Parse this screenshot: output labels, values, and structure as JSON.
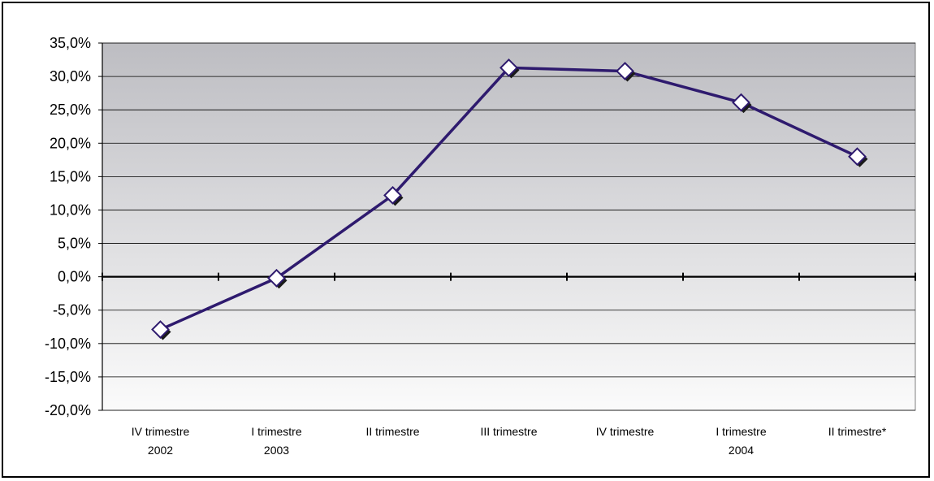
{
  "chart_data": {
    "type": "line",
    "title": "",
    "xlabel": "",
    "ylabel": "",
    "categories": [
      [
        "IV trimestre",
        "2002"
      ],
      [
        "I trimestre",
        "2003"
      ],
      [
        "II trimestre"
      ],
      [
        "III trimestre"
      ],
      [
        "IV trimestre"
      ],
      [
        "I trimestre",
        "2004"
      ],
      [
        "II trimestre*"
      ]
    ],
    "series": [
      {
        "values": [
          -7.9,
          -0.2,
          12.2,
          31.3,
          30.8,
          26.1,
          18.0
        ]
      }
    ],
    "ylim": [
      -20,
      35
    ],
    "yticks": [
      -20,
      -15,
      -10,
      -5,
      0,
      5,
      10,
      15,
      20,
      25,
      30,
      35
    ],
    "ytick_labels": [
      "-20,0%",
      "-15,0%",
      "-10,0%",
      "-5,0%",
      "0,0%",
      "5,0%",
      "10,0%",
      "15,0%",
      "20,0%",
      "25,0%",
      "30,0%",
      "35,0%"
    ],
    "grid": true,
    "legend": "none",
    "colors": {
      "line": "#2e1a6e",
      "marker_fill": "#ffffff",
      "marker_shadow": "#1a1a1a",
      "plot_bg_top": "#bdbdc2",
      "plot_bg_bottom": "#fbfbfb"
    }
  }
}
